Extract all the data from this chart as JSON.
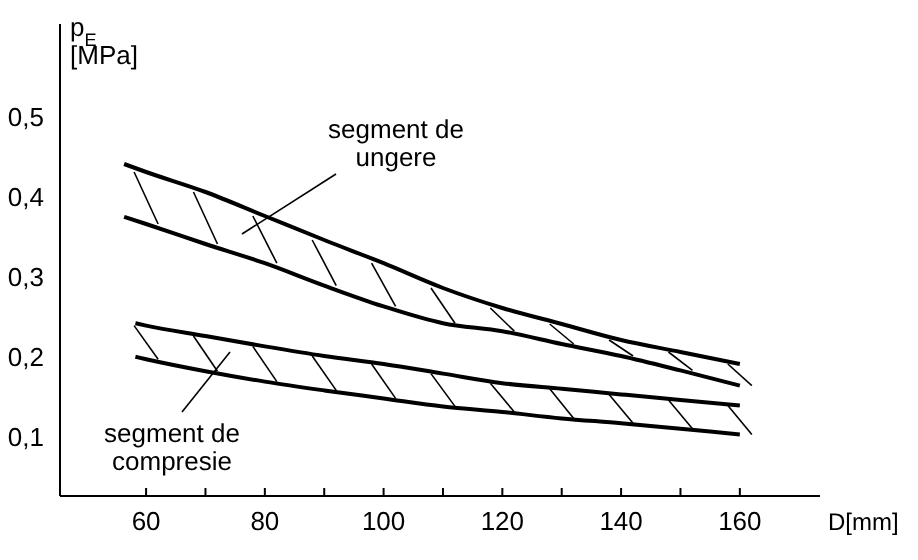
{
  "chart_data": {
    "type": "line",
    "xlabel": "D[mm]",
    "ylabel": "p$_{E}$\n[MPa]",
    "x": [
      56.3,
      60,
      70,
      80,
      90,
      100,
      110,
      120,
      130,
      140,
      150,
      160
    ],
    "series": [
      {
        "color": "#000000",
        "values": [
          0.44,
          0.43,
          0.405,
          0.375,
          0.345,
          0.316,
          0.285,
          0.26,
          0.24,
          0.22,
          0.205,
          0.19
        ]
      },
      {
        "color": "#000000",
        "values": [
          0.374,
          0.365,
          0.34,
          0.316,
          0.288,
          0.262,
          0.241,
          0.231,
          0.215,
          0.2,
          0.182,
          0.163
        ]
      },
      {
        "color": "#000000",
        "x": [
          58.2,
          60,
          70,
          80,
          90,
          100,
          110,
          120,
          130,
          140,
          150,
          160
        ],
        "values": [
          0.241,
          0.238,
          0.225,
          0.212,
          0.2,
          0.19,
          0.178,
          0.166,
          0.159,
          0.152,
          0.145,
          0.138
        ]
      },
      {
        "color": "#000000",
        "x": [
          58.2,
          60,
          70,
          80,
          90,
          100,
          110,
          120,
          130,
          140,
          150,
          160
        ],
        "values": [
          0.199,
          0.196,
          0.181,
          0.168,
          0.157,
          0.147,
          0.137,
          0.13,
          0.122,
          0.116,
          0.109,
          0.102
        ]
      }
    ],
    "xlim": [
      45.5,
      173.5
    ],
    "ylim": [
      0.025,
      0.615
    ],
    "xticks": [
      60,
      {
        "value": 70,
        "label": null
      },
      80,
      {
        "value": 90,
        "label": null
      },
      100,
      {
        "value": 110,
        "label": null
      },
      120,
      {
        "value": 130,
        "label": null
      },
      140,
      {
        "value": 150,
        "label": null
      },
      160
    ],
    "yticks": [
      {
        "value": 0.1,
        "label": "0,1"
      },
      {
        "value": 0.2,
        "label": "0,2"
      },
      {
        "value": 0.3,
        "label": "0,3"
      },
      {
        "value": 0.4,
        "label": "0,4"
      },
      {
        "value": 0.5,
        "label": "0,5"
      }
    ],
    "annotations": [
      "segment de\nungere",
      "segment de\ncompresie"
    ],
    "grid": false,
    "marker": "none",
    "line_style": "solid"
  }
}
